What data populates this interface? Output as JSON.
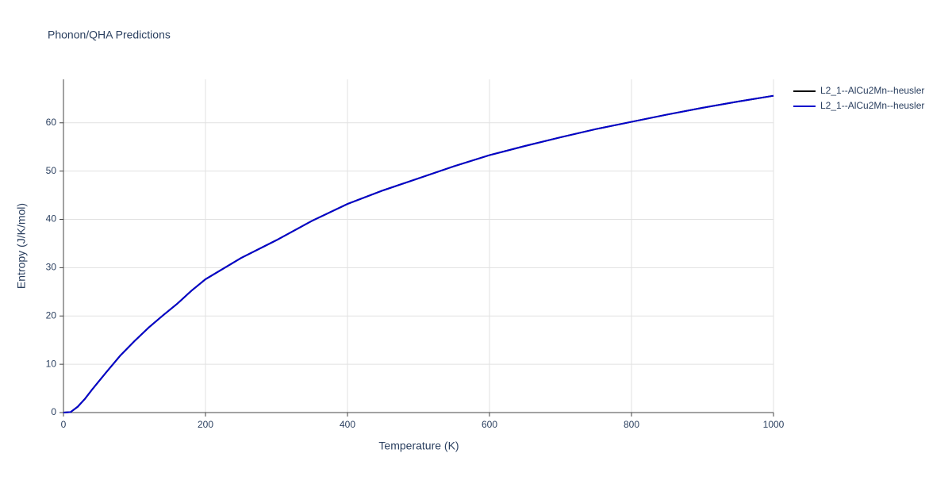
{
  "chart_data": {
    "type": "line",
    "title": "Phonon/QHA Predictions",
    "x_label": "Temperature (K)",
    "y_label": "Entropy (J/K/mol)",
    "x": [
      0,
      10,
      20,
      30,
      40,
      60,
      80,
      100,
      120,
      140,
      160,
      180,
      200,
      250,
      300,
      350,
      400,
      450,
      500,
      550,
      600,
      650,
      700,
      750,
      800,
      850,
      900,
      950,
      1000
    ],
    "series": [
      {
        "name": "L2_1--AlCu2Mn--heusler",
        "color": "#000000",
        "values": [
          0,
          0.1,
          1.2,
          2.8,
          4.7,
          8.3,
          11.8,
          14.8,
          17.6,
          20.1,
          22.5,
          25.2,
          27.6,
          32.0,
          35.7,
          39.7,
          43.2,
          46.0,
          48.5,
          51.0,
          53.3,
          55.2,
          57.0,
          58.7,
          60.2,
          61.7,
          63.1,
          64.4,
          65.6
        ]
      },
      {
        "name": "L2_1--AlCu2Mn--heusler",
        "color": "#0000cc",
        "values": [
          0,
          0.1,
          1.2,
          2.8,
          4.7,
          8.3,
          11.8,
          14.8,
          17.6,
          20.1,
          22.5,
          25.2,
          27.6,
          32.0,
          35.7,
          39.7,
          43.2,
          46.0,
          48.5,
          51.0,
          53.3,
          55.2,
          57.0,
          58.7,
          60.2,
          61.7,
          63.1,
          64.4,
          65.6
        ]
      }
    ],
    "xlim": [
      0,
      1000
    ],
    "xticks": [
      0,
      200,
      400,
      600,
      800,
      1000
    ],
    "ylim": [
      0,
      69
    ],
    "yticks": [
      0,
      10,
      20,
      30,
      40,
      50,
      60
    ],
    "grid": true,
    "legend": "right"
  }
}
